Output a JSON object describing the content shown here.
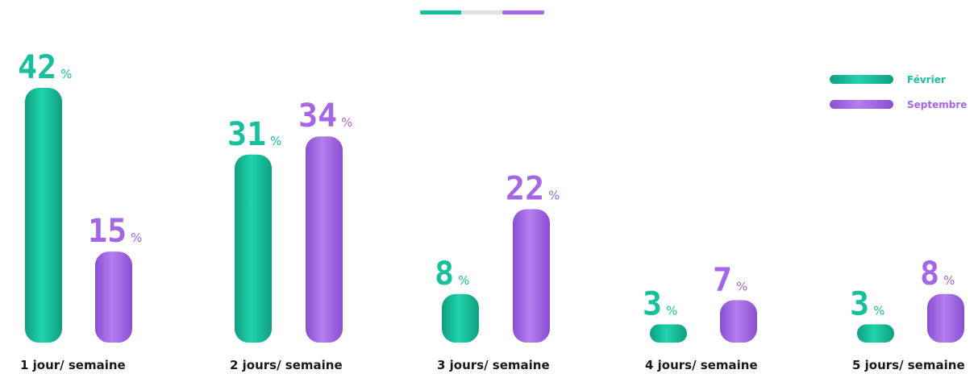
{
  "chart_data": {
    "type": "bar",
    "categories": [
      "1 jour/ semaine",
      "2 jours/ semaine",
      "3 jours/ semaine",
      "4 jours/ semaine",
      "5 jours/ semaine"
    ],
    "series": [
      {
        "name": "Février",
        "values": [
          42,
          31,
          8,
          3,
          3
        ],
        "color": "#16c09c"
      },
      {
        "name": "Septembre",
        "values": [
          15,
          34,
          22,
          7,
          8
        ],
        "color": "#a466e6"
      }
    ],
    "value_unit": "%",
    "ylim": [
      0,
      42
    ],
    "grid": false,
    "legend_position": "top-right",
    "decoration_colors": [
      "#16c09c",
      "#e2e2e2",
      "#a466e6"
    ]
  }
}
